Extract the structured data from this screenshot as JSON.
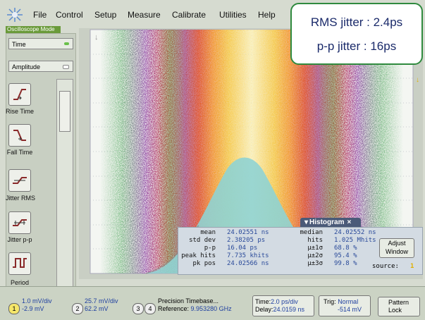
{
  "menu": [
    "File",
    "Control",
    "Setup",
    "Measure",
    "Calibrate",
    "Utilities",
    "Help"
  ],
  "mode_label": "Oscilloscope Mode",
  "sidebar": {
    "dropdowns": [
      "Time",
      "Amplitude"
    ],
    "buttons": [
      "Rise Time",
      "Fall Time",
      "Jitter RMS",
      "Jitter p-p",
      "Period"
    ]
  },
  "callout": [
    "RMS jitter : 2.4ps",
    "p-p jitter : 16ps"
  ],
  "histogram": {
    "title": "Histogram",
    "left": [
      [
        "mean",
        "24.02551 ns"
      ],
      [
        "std dev",
        "2.38205 ps"
      ],
      [
        "p-p",
        "16.04 ps"
      ],
      [
        "peak hits",
        "7.735 khits"
      ],
      [
        "pk pos",
        "24.02566 ns"
      ]
    ],
    "right": [
      [
        "median",
        "24.02552 ns"
      ],
      [
        "hits",
        "1.025 Mhits"
      ],
      [
        "µ±1σ",
        "68.8 %"
      ],
      [
        "µ±2σ",
        "95.4 %"
      ],
      [
        "µ±3σ",
        "99.8 %"
      ]
    ],
    "adjust": "Adjust Window",
    "source_label": "source:",
    "source": "1"
  },
  "status_bar": {
    "channels": [
      {
        "num": "1",
        "lines": [
          "1.0 mV/div",
          "-2.9 mV"
        ]
      },
      {
        "num": "2",
        "lines": [
          "25.7 mV/div",
          "62.2 mV"
        ]
      }
    ],
    "timebase": {
      "nums": [
        "3",
        "4"
      ],
      "title": "Precision Timebase...",
      "reference_label": "Reference:",
      "reference": "9.953280 GHz"
    },
    "time": [
      [
        "Time:",
        "2.0 ps/div"
      ],
      [
        "Delay:",
        "24.0159 ns"
      ]
    ],
    "trigger": {
      "label": "Trig:",
      "lines": [
        "Normal",
        "-514 mV"
      ]
    },
    "pattern": [
      "Pattern",
      "Lock"
    ]
  }
}
